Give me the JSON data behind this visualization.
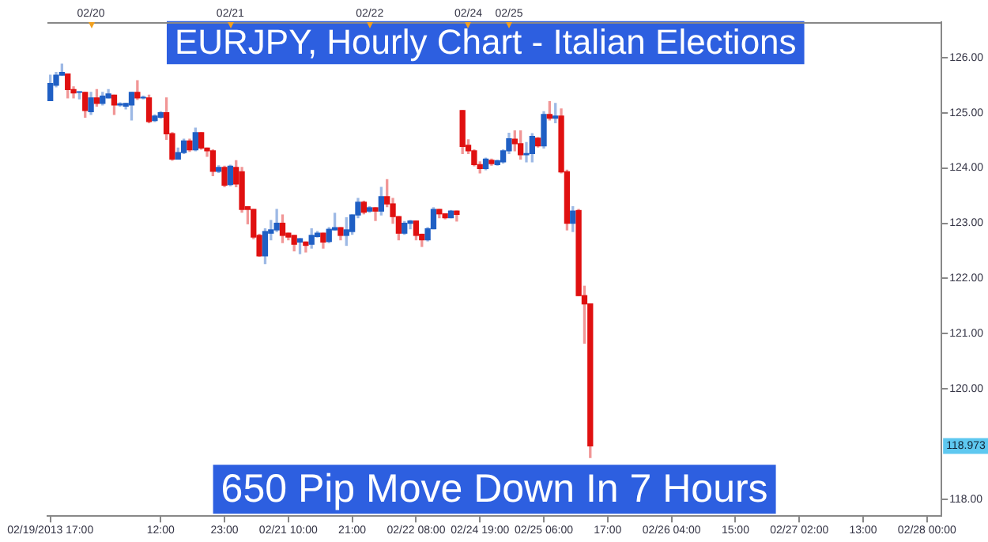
{
  "chart_data": {
    "type": "candlestick",
    "title": "EURJPY, Hourly Chart - Italian Elections",
    "annotations": [
      "650 Pip Move Down In 7 Hours",
      "118.973",
      "02/20",
      "02/21",
      "02/22",
      "02/24",
      "02/25"
    ],
    "categories": [
      "02/19/2013 17:00",
      null,
      null,
      null,
      null,
      null,
      null,
      null,
      null,
      null,
      null,
      null,
      null,
      null,
      null,
      null,
      null,
      null,
      null,
      "12:00",
      null,
      null,
      null,
      null,
      null,
      null,
      null,
      null,
      null,
      null,
      "23:00",
      null,
      null,
      null,
      null,
      null,
      null,
      null,
      null,
      null,
      null,
      "02/21 10:00",
      null,
      null,
      null,
      null,
      null,
      null,
      null,
      null,
      null,
      null,
      "21:00",
      null,
      null,
      null,
      null,
      null,
      null,
      null,
      null,
      null,
      null,
      "02/22 08:00",
      null,
      null,
      null,
      null,
      null,
      null,
      null,
      null,
      null,
      null,
      "02/24 19:00",
      null,
      null,
      null,
      null,
      null,
      null,
      null,
      null,
      null,
      null,
      "02/25 06:00",
      null,
      null,
      null,
      null,
      null,
      null,
      null,
      null,
      null,
      null,
      "17:00",
      null,
      null,
      null,
      null,
      null,
      null,
      null,
      null,
      null,
      null,
      "02/26 04:00",
      null,
      null,
      null,
      null,
      null,
      null,
      null,
      null,
      null,
      null,
      "15:00",
      null,
      null,
      null,
      null,
      null,
      null,
      null,
      null,
      null,
      null,
      "02/27 02:00",
      null,
      null,
      null,
      null,
      null,
      null,
      null,
      null,
      null,
      null,
      "13:00",
      null,
      null,
      null,
      null,
      null,
      null,
      null,
      null,
      null,
      null,
      "02/28 00:00",
      null,
      null
    ],
    "ohlc": [
      [
        125.22,
        125.68,
        125.22,
        125.53
      ],
      [
        125.5,
        125.73,
        125.47,
        125.68
      ],
      [
        125.68,
        125.88,
        125.68,
        125.73
      ],
      [
        125.7,
        125.7,
        125.27,
        125.42
      ],
      [
        125.42,
        125.47,
        125.27,
        125.36
      ],
      [
        125.37,
        125.38,
        125.25,
        125.38
      ],
      [
        125.37,
        125.37,
        124.92,
        125.04
      ],
      [
        125.02,
        125.37,
        124.97,
        125.27
      ],
      [
        125.27,
        125.42,
        125.12,
        125.17
      ],
      [
        125.17,
        125.37,
        125.14,
        125.3
      ],
      [
        125.27,
        125.42,
        125.27,
        125.34
      ],
      [
        125.32,
        125.32,
        124.97,
        125.14
      ],
      [
        125.14,
        125.18,
        125.12,
        125.16
      ],
      [
        125.12,
        125.17,
        125.07,
        125.17
      ],
      [
        125.14,
        125.37,
        124.87,
        125.37
      ],
      [
        125.37,
        125.58,
        125.24,
        125.27
      ],
      [
        125.27,
        125.3,
        125.25,
        125.28
      ],
      [
        125.27,
        125.32,
        124.82,
        124.84
      ],
      [
        124.86,
        124.96,
        124.84,
        124.94
      ],
      [
        124.92,
        125.02,
        124.9,
        125.0
      ],
      [
        125.0,
        125.27,
        124.52,
        124.62
      ],
      [
        124.62,
        124.64,
        124.14,
        124.16
      ],
      [
        124.16,
        124.36,
        124.16,
        124.28
      ],
      [
        124.28,
        124.52,
        124.26,
        124.49
      ],
      [
        124.49,
        124.52,
        124.3,
        124.33
      ],
      [
        124.33,
        124.72,
        124.31,
        124.64
      ],
      [
        124.64,
        124.64,
        124.34,
        124.36
      ],
      [
        124.36,
        124.36,
        124.21,
        124.31
      ],
      [
        124.31,
        124.33,
        123.86,
        123.94
      ],
      [
        123.94,
        124.04,
        123.92,
        124.01
      ],
      [
        124.01,
        124.03,
        123.66,
        123.69
      ],
      [
        123.7,
        124.05,
        123.68,
        124.03
      ],
      [
        124.01,
        124.13,
        123.66,
        123.71
      ],
      [
        123.93,
        124.01,
        123.2,
        123.25
      ],
      [
        123.3,
        123.3,
        122.99,
        123.25
      ],
      [
        123.25,
        123.25,
        122.72,
        122.75
      ],
      [
        122.78,
        122.8,
        122.4,
        122.41
      ],
      [
        122.41,
        122.9,
        122.27,
        122.85
      ],
      [
        122.82,
        123.05,
        122.7,
        122.88
      ],
      [
        122.88,
        123.25,
        122.85,
        123.0
      ],
      [
        123.0,
        123.15,
        122.65,
        122.78
      ],
      [
        122.82,
        122.82,
        122.7,
        122.75
      ],
      [
        122.78,
        122.78,
        122.5,
        122.62
      ],
      [
        122.66,
        122.72,
        122.45,
        122.72
      ],
      [
        122.66,
        122.66,
        122.48,
        122.6
      ],
      [
        122.62,
        122.9,
        122.55,
        122.78
      ],
      [
        122.76,
        122.85,
        122.75,
        122.82
      ],
      [
        122.82,
        122.82,
        122.55,
        122.66
      ],
      [
        122.67,
        122.92,
        122.65,
        122.89
      ],
      [
        122.88,
        123.18,
        122.88,
        122.92
      ],
      [
        122.92,
        122.92,
        122.7,
        122.78
      ],
      [
        122.78,
        123.1,
        122.6,
        122.88
      ],
      [
        122.85,
        123.15,
        122.8,
        123.15
      ],
      [
        123.15,
        123.45,
        123.1,
        123.38
      ],
      [
        123.38,
        123.4,
        123.17,
        123.2
      ],
      [
        123.22,
        123.3,
        123.2,
        123.28
      ],
      [
        123.28,
        123.28,
        123.05,
        123.22
      ],
      [
        123.22,
        123.65,
        123.15,
        123.48
      ],
      [
        123.48,
        123.79,
        123.3,
        123.35
      ],
      [
        123.35,
        123.45,
        123.0,
        123.12
      ],
      [
        123.12,
        123.12,
        122.7,
        122.82
      ],
      [
        122.82,
        123.03,
        122.8,
        123.0
      ],
      [
        123.0,
        123.05,
        122.9,
        123.04
      ],
      [
        123.04,
        123.04,
        122.7,
        122.78
      ],
      [
        122.8,
        122.8,
        122.58,
        122.7
      ],
      [
        122.7,
        122.92,
        122.68,
        122.9
      ],
      [
        122.9,
        123.28,
        122.9,
        123.25
      ],
      [
        123.25,
        123.25,
        123.1,
        123.17
      ],
      [
        123.17,
        123.17,
        123.08,
        123.1
      ],
      [
        123.1,
        123.23,
        123.1,
        123.22
      ],
      [
        123.22,
        123.22,
        123.04,
        123.16
      ],
      [
        125.04,
        125.04,
        124.26,
        124.39
      ],
      [
        124.41,
        124.51,
        124.26,
        124.31
      ],
      [
        124.31,
        124.33,
        124.04,
        124.06
      ],
      [
        124.06,
        124.11,
        123.91,
        123.99
      ],
      [
        123.99,
        124.18,
        123.97,
        124.16
      ],
      [
        124.14,
        124.16,
        124.05,
        124.08
      ],
      [
        124.06,
        124.14,
        124.05,
        124.13
      ],
      [
        124.11,
        124.33,
        124.09,
        124.31
      ],
      [
        124.31,
        124.63,
        124.26,
        124.53
      ],
      [
        124.52,
        124.67,
        124.31,
        124.44
      ],
      [
        124.44,
        124.67,
        124.16,
        124.24
      ],
      [
        124.24,
        124.46,
        124.11,
        124.26
      ],
      [
        124.26,
        124.62,
        124.11,
        124.57
      ],
      [
        124.54,
        124.55,
        124.38,
        124.4
      ],
      [
        124.4,
        125.02,
        124.36,
        124.97
      ],
      [
        124.97,
        125.2,
        124.87,
        124.9
      ],
      [
        124.9,
        125.17,
        124.82,
        124.94
      ],
      [
        124.94,
        125.07,
        123.91,
        123.93
      ],
      [
        123.93,
        123.96,
        122.88,
        123.0
      ],
      [
        123.0,
        123.3,
        122.85,
        123.22
      ],
      [
        123.23,
        123.25,
        121.69,
        121.69
      ],
      [
        121.69,
        121.86,
        120.83,
        121.54
      ],
      [
        121.54,
        121.54,
        118.76,
        118.97
      ],
      null,
      null,
      null,
      null,
      null,
      null,
      null,
      null,
      null,
      null,
      null,
      null,
      null,
      null,
      null,
      null,
      null,
      null,
      null,
      null,
      null,
      null,
      null,
      null,
      null,
      null,
      null,
      null,
      null,
      null,
      null,
      null,
      null,
      null,
      null,
      null,
      null,
      null,
      null,
      null,
      null,
      null,
      null,
      null,
      null,
      null,
      null,
      null,
      null,
      null,
      null,
      null,
      null,
      null,
      null,
      null,
      null,
      null,
      null,
      null
    ],
    "colors": [
      "#1f5fc4",
      "#1f5fc4",
      "#1f5fc4",
      "#e01010",
      "#e01010",
      "#1f5fc4",
      "#e01010",
      "#1f5fc4",
      "#e01010",
      "#1f5fc4",
      "#1f5fc4",
      "#e01010",
      "#1f5fc4",
      "#1f5fc4",
      "#1f5fc4",
      "#e01010",
      "#1f5fc4",
      "#e01010",
      "#1f5fc4",
      "#1f5fc4",
      "#e01010",
      "#e01010",
      "#1f5fc4",
      "#1f5fc4",
      "#e01010",
      "#1f5fc4",
      "#e01010",
      "#e01010",
      "#e01010",
      "#1f5fc4",
      "#e01010",
      "#1f5fc4",
      "#e01010",
      "#e01010",
      "#e01010",
      "#e01010",
      "#e01010",
      "#1f5fc4",
      "#1f5fc4",
      "#1f5fc4",
      "#e01010",
      "#e01010",
      "#e01010",
      "#1f5fc4",
      "#e01010",
      "#1f5fc4",
      "#1f5fc4",
      "#e01010",
      "#1f5fc4",
      "#1f5fc4",
      "#e01010",
      "#1f5fc4",
      "#1f5fc4",
      "#1f5fc4",
      "#e01010",
      "#1f5fc4",
      "#e01010",
      "#1f5fc4",
      "#e01010",
      "#e01010",
      "#e01010",
      "#1f5fc4",
      "#1f5fc4",
      "#e01010",
      "#e01010",
      "#1f5fc4",
      "#1f5fc4",
      "#e01010",
      "#e01010",
      "#1f5fc4",
      "#e01010",
      "#e01010",
      "#e01010",
      "#e01010",
      "#e01010",
      "#1f5fc4",
      "#e01010",
      "#1f5fc4",
      "#1f5fc4",
      "#1f5fc4",
      "#e01010",
      "#e01010",
      "#1f5fc4",
      "#1f5fc4",
      "#e01010",
      "#1f5fc4",
      "#e01010",
      "#1f5fc4",
      "#e01010",
      "#e01010",
      "#1f5fc4",
      "#e01010",
      "#e01010",
      "#e01010",
      null,
      null,
      null,
      null,
      null,
      null,
      null,
      null,
      null,
      null,
      null,
      null,
      null,
      null,
      null,
      null,
      null,
      null,
      null,
      null,
      null,
      null,
      null,
      null,
      null,
      null,
      null,
      null,
      null,
      null,
      null,
      null,
      null,
      null,
      null,
      null,
      null,
      null,
      null,
      null,
      null,
      null,
      null,
      null,
      null,
      null,
      null,
      null,
      null,
      null,
      null,
      null,
      null,
      null,
      null,
      null,
      null,
      null,
      null,
      null
    ],
    "ylim": [
      117.7,
      126.64
    ],
    "yticks": [
      {
        "value": 118,
        "label": "118.00"
      },
      {
        "value": 120,
        "label": "120.00"
      },
      {
        "value": 121,
        "label": "121.00"
      },
      {
        "value": 122,
        "label": "122.00"
      },
      {
        "value": 123,
        "label": "123.00"
      },
      {
        "value": 124,
        "label": "124.00"
      },
      {
        "value": 125,
        "label": "125.00"
      },
      {
        "value": 126,
        "label": "126.00"
      }
    ]
  }
}
